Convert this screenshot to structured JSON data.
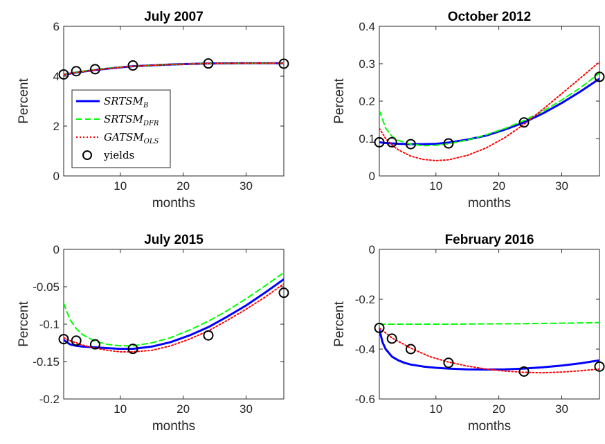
{
  "chart_data": [
    {
      "type": "line",
      "title": "July 2007",
      "xlabel": "months",
      "ylabel": "Percent",
      "xlim": [
        1,
        36
      ],
      "ylim": [
        0,
        6
      ],
      "xticks": [
        10,
        20,
        30
      ],
      "yticks": [
        0,
        2,
        4,
        6
      ],
      "ytick_labels": [
        "0",
        "2",
        "4",
        "6"
      ],
      "legend": {
        "position": "left-center",
        "entries": [
          {
            "base": "SRTSM",
            "sub": "B"
          },
          {
            "base": "SRTSM",
            "sub": "DFR"
          },
          {
            "base": "GATSM",
            "sub": "OLS"
          },
          {
            "base": "yields",
            "sub": ""
          }
        ]
      },
      "series": [
        {
          "key": "srtsm_b",
          "x": [
            1,
            3,
            6,
            9,
            12,
            18,
            24,
            30,
            36
          ],
          "y": [
            4.06,
            4.15,
            4.25,
            4.33,
            4.4,
            4.47,
            4.51,
            4.52,
            4.52
          ]
        },
        {
          "key": "srtsm_dfr",
          "x": [
            1,
            3,
            6,
            9,
            12,
            18,
            24,
            30,
            36
          ],
          "y": [
            4.07,
            4.16,
            4.26,
            4.34,
            4.4,
            4.47,
            4.51,
            4.52,
            4.52
          ]
        },
        {
          "key": "gatsm_ols",
          "x": [
            1,
            3,
            6,
            9,
            12,
            18,
            24,
            30,
            36
          ],
          "y": [
            4.06,
            4.15,
            4.25,
            4.33,
            4.4,
            4.47,
            4.51,
            4.52,
            4.52
          ]
        }
      ],
      "yields": {
        "x": [
          1,
          3,
          6,
          12,
          24,
          36
        ],
        "y": [
          4.07,
          4.2,
          4.28,
          4.43,
          4.51,
          4.5
        ]
      }
    },
    {
      "type": "line",
      "title": "October 2012",
      "xlabel": "months",
      "ylabel": "Percent",
      "xlim": [
        1,
        36
      ],
      "ylim": [
        0,
        0.4
      ],
      "xticks": [
        10,
        20,
        30
      ],
      "yticks": [
        0,
        0.1,
        0.2,
        0.3,
        0.4
      ],
      "ytick_labels": [
        "0",
        "0.1",
        "0.2",
        "0.3",
        "0.4"
      ],
      "series": [
        {
          "key": "srtsm_b",
          "x": [
            1,
            2,
            3,
            4,
            6,
            8,
            10,
            12,
            15,
            18,
            21,
            24,
            27,
            30,
            33,
            36
          ],
          "y": [
            0.09,
            0.088,
            0.087,
            0.086,
            0.085,
            0.085,
            0.086,
            0.089,
            0.097,
            0.108,
            0.124,
            0.143,
            0.167,
            0.195,
            0.226,
            0.26
          ]
        },
        {
          "key": "srtsm_dfr",
          "x": [
            1,
            2,
            3,
            4,
            6,
            8,
            10,
            12,
            15,
            18,
            21,
            24,
            27,
            30,
            33,
            36
          ],
          "y": [
            0.175,
            0.128,
            0.106,
            0.095,
            0.085,
            0.081,
            0.082,
            0.086,
            0.096,
            0.11,
            0.127,
            0.148,
            0.173,
            0.203,
            0.236,
            0.275
          ]
        },
        {
          "key": "gatsm_ols",
          "x": [
            1,
            2,
            3,
            4,
            6,
            8,
            10,
            12,
            15,
            18,
            21,
            24,
            27,
            30,
            33,
            36
          ],
          "y": [
            0.127,
            0.1,
            0.083,
            0.07,
            0.053,
            0.044,
            0.041,
            0.043,
            0.055,
            0.075,
            0.103,
            0.138,
            0.178,
            0.22,
            0.262,
            0.305
          ]
        }
      ],
      "yields": {
        "x": [
          1,
          3,
          6,
          12,
          24,
          36
        ],
        "y": [
          0.09,
          0.09,
          0.085,
          0.087,
          0.143,
          0.265
        ]
      }
    },
    {
      "type": "line",
      "title": "July 2015",
      "xlabel": "months",
      "ylabel": "Percent",
      "xlim": [
        1,
        36
      ],
      "ylim": [
        -0.2,
        0
      ],
      "xticks": [
        10,
        20,
        30
      ],
      "yticks": [
        -0.2,
        -0.15,
        -0.1,
        -0.05,
        0
      ],
      "ytick_labels": [
        "-0.2",
        "-0.15",
        "-0.1",
        "-0.05",
        "0"
      ],
      "series": [
        {
          "key": "srtsm_b",
          "x": [
            1,
            2,
            3,
            4,
            6,
            8,
            10,
            12,
            15,
            18,
            21,
            24,
            27,
            30,
            33,
            36
          ],
          "y": [
            -0.121,
            -0.127,
            -0.129,
            -0.13,
            -0.131,
            -0.132,
            -0.133,
            -0.133,
            -0.13,
            -0.124,
            -0.115,
            -0.104,
            -0.09,
            -0.075,
            -0.058,
            -0.04
          ]
        },
        {
          "key": "srtsm_dfr",
          "x": [
            1,
            2,
            3,
            4,
            6,
            8,
            10,
            12,
            15,
            18,
            21,
            24,
            27,
            30,
            33,
            36
          ],
          "y": [
            -0.072,
            -0.094,
            -0.106,
            -0.114,
            -0.123,
            -0.127,
            -0.129,
            -0.129,
            -0.125,
            -0.118,
            -0.108,
            -0.096,
            -0.082,
            -0.066,
            -0.049,
            -0.031
          ]
        },
        {
          "key": "gatsm_ols",
          "x": [
            1,
            2,
            3,
            4,
            6,
            8,
            10,
            12,
            15,
            18,
            21,
            24,
            27,
            30,
            33,
            36
          ],
          "y": [
            -0.118,
            -0.122,
            -0.125,
            -0.128,
            -0.132,
            -0.135,
            -0.137,
            -0.137,
            -0.135,
            -0.129,
            -0.12,
            -0.109,
            -0.095,
            -0.08,
            -0.064,
            -0.046
          ]
        }
      ],
      "yields": {
        "x": [
          1,
          3,
          6,
          12,
          24,
          36
        ],
        "y": [
          -0.12,
          -0.122,
          -0.127,
          -0.133,
          -0.115,
          -0.058
        ]
      }
    },
    {
      "type": "line",
      "title": "February 2016",
      "xlabel": "months",
      "ylabel": "Percent",
      "xlim": [
        1,
        36
      ],
      "ylim": [
        -0.6,
        0
      ],
      "xticks": [
        10,
        20,
        30
      ],
      "yticks": [
        -0.6,
        -0.4,
        -0.2,
        0
      ],
      "ytick_labels": [
        "-0.6",
        "-0.4",
        "-0.2",
        "0"
      ],
      "series": [
        {
          "key": "srtsm_b",
          "x": [
            1,
            1.5,
            2,
            3,
            4,
            5,
            6,
            8,
            10,
            12,
            15,
            18,
            21,
            24,
            27,
            30,
            33,
            36
          ],
          "y": [
            -0.32,
            -0.372,
            -0.4,
            -0.43,
            -0.445,
            -0.455,
            -0.462,
            -0.47,
            -0.475,
            -0.478,
            -0.481,
            -0.482,
            -0.481,
            -0.478,
            -0.473,
            -0.466,
            -0.457,
            -0.445
          ]
        },
        {
          "key": "srtsm_dfr",
          "x": [
            1,
            6,
            12,
            18,
            24,
            30,
            36
          ],
          "y": [
            -0.3,
            -0.3,
            -0.3,
            -0.299,
            -0.298,
            -0.296,
            -0.294
          ]
        },
        {
          "key": "gatsm_ols",
          "x": [
            1,
            3,
            6,
            9,
            12,
            15,
            18,
            21,
            24,
            27,
            30,
            33,
            36
          ],
          "y": [
            -0.315,
            -0.355,
            -0.396,
            -0.43,
            -0.452,
            -0.468,
            -0.48,
            -0.488,
            -0.493,
            -0.495,
            -0.492,
            -0.487,
            -0.48
          ]
        }
      ],
      "yields": {
        "x": [
          1,
          3,
          6,
          12,
          24,
          36
        ],
        "y": [
          -0.315,
          -0.358,
          -0.4,
          -0.455,
          -0.49,
          -0.47
        ]
      }
    }
  ],
  "styles": {
    "srtsm_b": {
      "color": "#0000ff",
      "dash": "solid"
    },
    "srtsm_dfr": {
      "color": "#00ff00",
      "dash": "dashed"
    },
    "gatsm_ols": {
      "color": "#ff0000",
      "dash": "dotted"
    },
    "yields": {
      "color": "#000000",
      "marker": "circle"
    }
  }
}
